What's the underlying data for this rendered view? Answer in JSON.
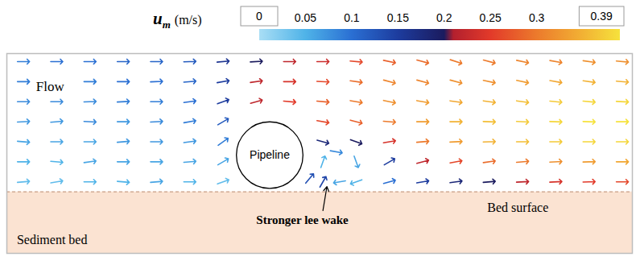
{
  "chart_data": {
    "type": "vector_field",
    "tick_labels": false,
    "xlim": [
      -3.95,
      5.45
    ],
    "ylim": [
      -0.92,
      2.07
    ],
    "colorbar": {
      "variable": "u",
      "subscript": "m",
      "unit": "(m/s)",
      "range": [
        0,
        0.39
      ],
      "ticks": [
        0,
        0.05,
        0.1,
        0.15,
        0.2,
        0.25,
        0.3,
        0.39
      ],
      "stops": [
        0,
        0.05,
        0.1,
        0.15,
        0.2,
        0.21,
        0.25,
        0.3,
        0.35,
        0.39
      ],
      "colors": [
        "#a9def5",
        "#4fb3e8",
        "#2a6fd3",
        "#1d3c9e",
        "#1b1b5e",
        "#b3202e",
        "#e23a2a",
        "#ec7a2c",
        "#f2b234",
        "#f6e23c"
      ]
    },
    "pipeline": {
      "label": "Pipeline",
      "x": 0,
      "y": 0.55,
      "radius": 0.5
    },
    "bed_surface": {
      "label": "Bed surface",
      "y": 0,
      "label_x": 3.27,
      "label_y": -0.24
    },
    "sediment_bed": {
      "label": "Sediment bed",
      "label_x": -3.8,
      "label_y": -0.72
    },
    "annotations": [
      {
        "text": "Flow",
        "x": -3.3,
        "y": 1.57
      },
      {
        "text": "Stronger lee wake",
        "x": 0.49,
        "y": -0.42,
        "arrow_x": 0.8,
        "arrow_y": -0.28,
        "target_x": 0.86,
        "target_y": 0.08
      }
    ],
    "vectors": [
      {
        "x": -3.7,
        "y": 0.15,
        "u": 0.04,
        "angle": 5
      },
      {
        "x": -3.7,
        "y": 0.45,
        "u": 0.05,
        "angle": 0
      },
      {
        "x": -3.7,
        "y": 0.75,
        "u": 0.06,
        "angle": -5
      },
      {
        "x": -3.7,
        "y": 1.05,
        "u": 0.07,
        "angle": 3
      },
      {
        "x": -3.7,
        "y": 1.35,
        "u": 0.08,
        "angle": 0
      },
      {
        "x": -3.7,
        "y": 1.65,
        "u": 0.09,
        "angle": 0
      },
      {
        "x": -3.7,
        "y": 1.95,
        "u": 0.09,
        "angle": 0
      },
      {
        "x": -3.2,
        "y": 0.15,
        "u": 0.04,
        "angle": 10
      },
      {
        "x": -3.2,
        "y": 0.45,
        "u": 0.05,
        "angle": -5
      },
      {
        "x": -3.2,
        "y": 0.75,
        "u": 0.06,
        "angle": 0
      },
      {
        "x": -3.2,
        "y": 1.05,
        "u": 0.07,
        "angle": 5
      },
      {
        "x": -3.2,
        "y": 1.35,
        "u": 0.08,
        "angle": 0
      },
      {
        "x": -3.2,
        "y": 1.95,
        "u": 0.1,
        "angle": 0
      },
      {
        "x": -2.7,
        "y": 0.15,
        "u": 0.05,
        "angle": 0
      },
      {
        "x": -2.7,
        "y": 0.45,
        "u": 0.06,
        "angle": 8
      },
      {
        "x": -2.7,
        "y": 0.75,
        "u": 0.06,
        "angle": 0
      },
      {
        "x": -2.7,
        "y": 1.05,
        "u": 0.08,
        "angle": -3
      },
      {
        "x": -2.7,
        "y": 1.35,
        "u": 0.08,
        "angle": 2
      },
      {
        "x": -2.7,
        "y": 1.65,
        "u": 0.09,
        "angle": 0
      },
      {
        "x": -2.7,
        "y": 1.95,
        "u": 0.1,
        "angle": 0
      },
      {
        "x": -2.2,
        "y": 0.15,
        "u": 0.05,
        "angle": -5
      },
      {
        "x": -2.2,
        "y": 0.45,
        "u": 0.06,
        "angle": 0
      },
      {
        "x": -2.2,
        "y": 0.75,
        "u": 0.07,
        "angle": 5
      },
      {
        "x": -2.2,
        "y": 1.05,
        "u": 0.07,
        "angle": 0
      },
      {
        "x": -2.2,
        "y": 1.35,
        "u": 0.09,
        "angle": 3
      },
      {
        "x": -2.2,
        "y": 1.65,
        "u": 0.1,
        "angle": 0
      },
      {
        "x": -2.2,
        "y": 1.95,
        "u": 0.11,
        "angle": 0
      },
      {
        "x": -1.7,
        "y": 0.15,
        "u": 0.06,
        "angle": 5
      },
      {
        "x": -1.7,
        "y": 0.45,
        "u": 0.06,
        "angle": 0
      },
      {
        "x": -1.7,
        "y": 0.75,
        "u": 0.07,
        "angle": 0
      },
      {
        "x": -1.7,
        "y": 1.05,
        "u": 0.08,
        "angle": 3
      },
      {
        "x": -1.7,
        "y": 1.35,
        "u": 0.09,
        "angle": 0
      },
      {
        "x": -1.7,
        "y": 1.65,
        "u": 0.1,
        "angle": 2
      },
      {
        "x": -1.7,
        "y": 1.95,
        "u": 0.11,
        "angle": 0
      },
      {
        "x": -1.2,
        "y": 0.15,
        "u": 0.05,
        "angle": 0
      },
      {
        "x": -1.2,
        "y": 0.45,
        "u": 0.06,
        "angle": 5
      },
      {
        "x": -1.2,
        "y": 0.75,
        "u": 0.07,
        "angle": 8
      },
      {
        "x": -1.2,
        "y": 1.05,
        "u": 0.09,
        "angle": 10
      },
      {
        "x": -1.2,
        "y": 1.35,
        "u": 0.1,
        "angle": 8
      },
      {
        "x": -1.2,
        "y": 1.65,
        "u": 0.11,
        "angle": 5
      },
      {
        "x": -1.2,
        "y": 1.95,
        "u": 0.12,
        "angle": 2
      },
      {
        "x": -0.7,
        "y": 0.15,
        "u": 0.04,
        "angle": 20
      },
      {
        "x": -0.7,
        "y": 0.45,
        "u": 0.06,
        "angle": 30
      },
      {
        "x": -0.7,
        "y": 0.75,
        "u": 0.09,
        "angle": 35
      },
      {
        "x": -0.7,
        "y": 1.05,
        "u": 0.12,
        "angle": 30
      },
      {
        "x": -0.7,
        "y": 1.35,
        "u": 0.15,
        "angle": 20
      },
      {
        "x": -0.7,
        "y": 1.65,
        "u": 0.15,
        "angle": 10
      },
      {
        "x": -0.7,
        "y": 1.95,
        "u": 0.16,
        "angle": 5
      },
      {
        "x": -0.2,
        "y": 1.35,
        "u": 0.22,
        "angle": 15
      },
      {
        "x": -0.2,
        "y": 1.65,
        "u": 0.22,
        "angle": 8
      },
      {
        "x": -0.2,
        "y": 1.95,
        "u": 0.2,
        "angle": 3
      },
      {
        "x": 0.3,
        "y": 1.35,
        "u": 0.25,
        "angle": -5
      },
      {
        "x": 0.3,
        "y": 1.65,
        "u": 0.24,
        "angle": 0
      },
      {
        "x": 0.3,
        "y": 1.95,
        "u": 0.22,
        "angle": 0
      },
      {
        "x": 0.6,
        "y": 0.2,
        "u": 0.13,
        "angle": 50
      },
      {
        "x": 0.8,
        "y": 0.15,
        "u": 0.14,
        "angle": 60
      },
      {
        "x": 0.8,
        "y": 0.45,
        "u": 0.05,
        "angle": 70
      },
      {
        "x": 0.8,
        "y": 0.75,
        "u": 0.18,
        "angle": -15
      },
      {
        "x": 0.8,
        "y": 1.05,
        "u": 0.26,
        "angle": -10
      },
      {
        "x": 0.8,
        "y": 1.35,
        "u": 0.28,
        "angle": -5
      },
      {
        "x": 0.8,
        "y": 1.65,
        "u": 0.26,
        "angle": -3
      },
      {
        "x": 0.8,
        "y": 1.95,
        "u": 0.23,
        "angle": 0
      },
      {
        "x": 1.05,
        "y": 0.15,
        "u": 0.06,
        "angle": 190
      },
      {
        "x": 1.0,
        "y": 0.6,
        "u": 0.08,
        "angle": -10
      },
      {
        "x": 1.3,
        "y": 0.15,
        "u": 0.05,
        "angle": 200
      },
      {
        "x": 1.3,
        "y": 0.45,
        "u": 0.06,
        "angle": -70
      },
      {
        "x": 1.3,
        "y": 0.75,
        "u": 0.2,
        "angle": -20
      },
      {
        "x": 1.3,
        "y": 1.05,
        "u": 0.28,
        "angle": -15
      },
      {
        "x": 1.3,
        "y": 1.35,
        "u": 0.3,
        "angle": -10
      },
      {
        "x": 1.3,
        "y": 1.65,
        "u": 0.29,
        "angle": -8
      },
      {
        "x": 1.3,
        "y": 1.95,
        "u": 0.26,
        "angle": -5
      },
      {
        "x": 1.8,
        "y": 0.15,
        "u": 0.1,
        "angle": 15
      },
      {
        "x": 1.8,
        "y": 0.45,
        "u": 0.15,
        "angle": 30
      },
      {
        "x": 1.8,
        "y": 0.75,
        "u": 0.24,
        "angle": 10
      },
      {
        "x": 1.8,
        "y": 1.05,
        "u": 0.3,
        "angle": -5
      },
      {
        "x": 1.8,
        "y": 1.35,
        "u": 0.32,
        "angle": -12
      },
      {
        "x": 1.8,
        "y": 1.65,
        "u": 0.31,
        "angle": -15
      },
      {
        "x": 1.8,
        "y": 1.95,
        "u": 0.28,
        "angle": -12
      },
      {
        "x": 2.3,
        "y": 0.15,
        "u": 0.15,
        "angle": 10
      },
      {
        "x": 2.3,
        "y": 0.45,
        "u": 0.22,
        "angle": 15
      },
      {
        "x": 2.3,
        "y": 0.75,
        "u": 0.3,
        "angle": 5
      },
      {
        "x": 2.3,
        "y": 1.05,
        "u": 0.33,
        "angle": 0
      },
      {
        "x": 2.3,
        "y": 1.35,
        "u": 0.33,
        "angle": -10
      },
      {
        "x": 2.3,
        "y": 1.65,
        "u": 0.31,
        "angle": -15
      },
      {
        "x": 2.3,
        "y": 1.95,
        "u": 0.29,
        "angle": -15
      },
      {
        "x": 2.8,
        "y": 0.15,
        "u": 0.18,
        "angle": 8
      },
      {
        "x": 2.8,
        "y": 0.45,
        "u": 0.26,
        "angle": 10
      },
      {
        "x": 2.8,
        "y": 0.75,
        "u": 0.33,
        "angle": 3
      },
      {
        "x": 2.8,
        "y": 1.05,
        "u": 0.35,
        "angle": 0
      },
      {
        "x": 2.8,
        "y": 1.35,
        "u": 0.34,
        "angle": -8
      },
      {
        "x": 2.8,
        "y": 1.65,
        "u": 0.32,
        "angle": -15
      },
      {
        "x": 2.8,
        "y": 1.95,
        "u": 0.3,
        "angle": -18
      },
      {
        "x": 3.3,
        "y": 0.15,
        "u": 0.2,
        "angle": 5
      },
      {
        "x": 3.3,
        "y": 0.45,
        "u": 0.29,
        "angle": 8
      },
      {
        "x": 3.3,
        "y": 0.75,
        "u": 0.35,
        "angle": 2
      },
      {
        "x": 3.3,
        "y": 1.05,
        "u": 0.36,
        "angle": -2
      },
      {
        "x": 3.3,
        "y": 1.35,
        "u": 0.35,
        "angle": -8
      },
      {
        "x": 3.3,
        "y": 1.65,
        "u": 0.32,
        "angle": -12
      },
      {
        "x": 3.3,
        "y": 1.95,
        "u": 0.3,
        "angle": -15
      },
      {
        "x": 3.8,
        "y": 0.15,
        "u": 0.22,
        "angle": 3
      },
      {
        "x": 3.8,
        "y": 0.45,
        "u": 0.3,
        "angle": 5
      },
      {
        "x": 3.8,
        "y": 0.75,
        "u": 0.36,
        "angle": 0
      },
      {
        "x": 3.8,
        "y": 1.05,
        "u": 0.37,
        "angle": -3
      },
      {
        "x": 3.8,
        "y": 1.35,
        "u": 0.36,
        "angle": -8
      },
      {
        "x": 3.8,
        "y": 1.65,
        "u": 0.33,
        "angle": -12
      },
      {
        "x": 3.8,
        "y": 1.95,
        "u": 0.31,
        "angle": -12
      },
      {
        "x": 4.3,
        "y": 0.15,
        "u": 0.24,
        "angle": 3
      },
      {
        "x": 4.3,
        "y": 0.45,
        "u": 0.32,
        "angle": 3
      },
      {
        "x": 4.3,
        "y": 0.75,
        "u": 0.37,
        "angle": 0
      },
      {
        "x": 4.3,
        "y": 1.05,
        "u": 0.38,
        "angle": -2
      },
      {
        "x": 4.3,
        "y": 1.35,
        "u": 0.37,
        "angle": -6
      },
      {
        "x": 4.3,
        "y": 1.65,
        "u": 0.34,
        "angle": -10
      },
      {
        "x": 4.3,
        "y": 1.95,
        "u": 0.31,
        "angle": -10
      },
      {
        "x": 4.8,
        "y": 0.15,
        "u": 0.25,
        "angle": 2
      },
      {
        "x": 4.8,
        "y": 0.45,
        "u": 0.33,
        "angle": 2
      },
      {
        "x": 4.8,
        "y": 0.75,
        "u": 0.38,
        "angle": 0
      },
      {
        "x": 4.8,
        "y": 1.05,
        "u": 0.39,
        "angle": -2
      },
      {
        "x": 4.8,
        "y": 1.35,
        "u": 0.38,
        "angle": -5
      },
      {
        "x": 4.8,
        "y": 1.65,
        "u": 0.35,
        "angle": -8
      },
      {
        "x": 4.8,
        "y": 1.95,
        "u": 0.32,
        "angle": -8
      },
      {
        "x": 5.3,
        "y": 0.15,
        "u": 0.26,
        "angle": 0
      },
      {
        "x": 5.3,
        "y": 0.45,
        "u": 0.34,
        "angle": 0
      },
      {
        "x": 5.3,
        "y": 0.75,
        "u": 0.38,
        "angle": 0
      },
      {
        "x": 5.3,
        "y": 1.05,
        "u": 0.39,
        "angle": 0
      },
      {
        "x": 5.3,
        "y": 1.35,
        "u": 0.38,
        "angle": -3
      },
      {
        "x": 5.3,
        "y": 1.65,
        "u": 0.35,
        "angle": -5
      },
      {
        "x": 5.3,
        "y": 1.95,
        "u": 0.32,
        "angle": -5
      }
    ]
  }
}
